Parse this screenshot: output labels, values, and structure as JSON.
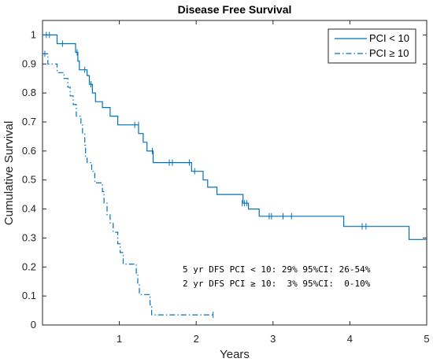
{
  "chart_data": {
    "type": "line",
    "title": "Disease Free Survival",
    "xlabel": "Years",
    "ylabel": "Cumulative Survival",
    "xlim": [
      0,
      5
    ],
    "ylim": [
      0,
      1.05
    ],
    "xticks": [
      1,
      2,
      3,
      4,
      5
    ],
    "yticks": [
      0,
      0.1,
      0.2,
      0.3,
      0.4,
      0.5,
      0.6,
      0.7,
      0.8,
      0.9,
      1
    ],
    "ytick_labels": [
      "0",
      "0.1",
      "0.2",
      "0.3",
      "0.4",
      "0.5",
      "0.6",
      "0.7",
      "0.8",
      "0.9",
      "1"
    ],
    "grid": false,
    "legend_position": "top-right",
    "series": [
      {
        "name": "PCI < 10",
        "style": "solid",
        "color": "#0072BD",
        "steps": [
          [
            0,
            1.0
          ],
          [
            0.19,
            0.97
          ],
          [
            0.43,
            0.94
          ],
          [
            0.46,
            0.91
          ],
          [
            0.48,
            0.88
          ],
          [
            0.58,
            0.86
          ],
          [
            0.61,
            0.83
          ],
          [
            0.65,
            0.8
          ],
          [
            0.69,
            0.77
          ],
          [
            0.78,
            0.75
          ],
          [
            0.88,
            0.72
          ],
          [
            0.98,
            0.69
          ],
          [
            1.25,
            0.66
          ],
          [
            1.31,
            0.63
          ],
          [
            1.36,
            0.6
          ],
          [
            1.44,
            0.56
          ],
          [
            1.94,
            0.53
          ],
          [
            2.09,
            0.5
          ],
          [
            2.15,
            0.475
          ],
          [
            2.27,
            0.45
          ],
          [
            2.61,
            0.42
          ],
          [
            2.68,
            0.4
          ],
          [
            2.82,
            0.375
          ],
          [
            3.92,
            0.34
          ],
          [
            4.77,
            0.295
          ],
          [
            5.0,
            0.295
          ]
        ],
        "censors": [
          [
            0.05,
            1.0
          ],
          [
            0.09,
            1.0
          ],
          [
            0.26,
            0.97
          ],
          [
            0.45,
            0.94
          ],
          [
            0.55,
            0.88
          ],
          [
            0.63,
            0.83
          ],
          [
            1.2,
            0.69
          ],
          [
            1.25,
            0.69
          ],
          [
            1.43,
            0.6
          ],
          [
            1.65,
            0.56
          ],
          [
            1.69,
            0.56
          ],
          [
            1.91,
            0.56
          ],
          [
            1.98,
            0.53
          ],
          [
            2.6,
            0.42
          ],
          [
            2.63,
            0.42
          ],
          [
            2.66,
            0.42
          ],
          [
            2.95,
            0.375
          ],
          [
            2.98,
            0.375
          ],
          [
            3.13,
            0.375
          ],
          [
            3.24,
            0.375
          ],
          [
            4.16,
            0.34
          ],
          [
            4.21,
            0.34
          ]
        ]
      },
      {
        "name": "PCI ≥ 10",
        "style": "dashdot",
        "color": "#0072BD",
        "steps": [
          [
            0,
            0.935
          ],
          [
            0.07,
            0.9
          ],
          [
            0.19,
            0.87
          ],
          [
            0.28,
            0.85
          ],
          [
            0.33,
            0.82
          ],
          [
            0.36,
            0.79
          ],
          [
            0.4,
            0.76
          ],
          [
            0.44,
            0.72
          ],
          [
            0.5,
            0.69
          ],
          [
            0.52,
            0.66
          ],
          [
            0.55,
            0.62
          ],
          [
            0.56,
            0.58
          ],
          [
            0.58,
            0.56
          ],
          [
            0.64,
            0.53
          ],
          [
            0.68,
            0.49
          ],
          [
            0.78,
            0.46
          ],
          [
            0.8,
            0.42
          ],
          [
            0.84,
            0.38
          ],
          [
            0.88,
            0.35
          ],
          [
            0.92,
            0.32
          ],
          [
            0.98,
            0.28
          ],
          [
            1.01,
            0.25
          ],
          [
            1.05,
            0.21
          ],
          [
            1.22,
            0.175
          ],
          [
            1.24,
            0.14
          ],
          [
            1.26,
            0.105
          ],
          [
            1.4,
            0.07
          ],
          [
            1.42,
            0.035
          ],
          [
            2.22,
            0.035
          ]
        ],
        "censors": [
          [
            0.03,
            0.935
          ],
          [
            2.22,
            0.035
          ]
        ]
      }
    ],
    "annotations": [
      "5 yr DFS PCI < 10: 29% 95%CI: 26-54%",
      "2 yr DFS PCI ≥ 10:  3% 95%CI:  0-10%"
    ]
  }
}
